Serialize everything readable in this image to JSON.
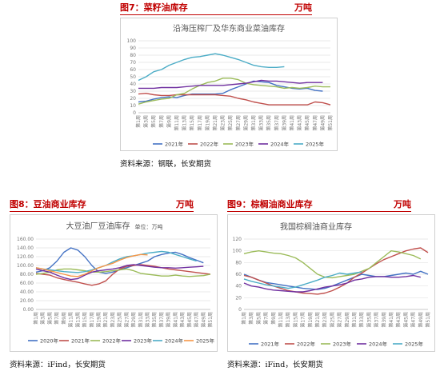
{
  "fig7": {
    "title": "图7：菜籽油库存",
    "unit": "万吨",
    "source": "资料来源：钢联，长安期货",
    "chart_data": {
      "type": "line",
      "title": "沿海压榨厂及华东商业菜油库存",
      "ylim": [
        0,
        100
      ],
      "yticks": [
        0,
        10,
        20,
        30,
        40,
        50,
        60,
        70,
        80,
        90,
        100
      ],
      "x": [
        "第1周",
        "第3周",
        "第5周",
        "第7周",
        "第9周",
        "第11周",
        "第13周",
        "第15周",
        "第17周",
        "第19周",
        "第21周",
        "第23周",
        "第25周",
        "第27周",
        "第29周",
        "第31周",
        "第33周",
        "第35周",
        "第37周",
        "第39周",
        "第41周",
        "第43周",
        "第45周",
        "第47周",
        "第49周",
        "第51周"
      ],
      "series": [
        {
          "name": "2021年",
          "color": "#4472c4",
          "values": [
            15,
            16,
            19,
            21,
            22,
            21,
            24,
            26,
            26,
            26,
            26,
            27,
            32,
            36,
            40,
            44,
            43,
            42,
            38,
            36,
            34,
            33,
            34,
            31,
            30,
            null
          ]
        },
        {
          "name": "2022年",
          "color": "#c0504d",
          "values": [
            26,
            27,
            25,
            24,
            24,
            25,
            25,
            25,
            25,
            25,
            25,
            24,
            23,
            20,
            18,
            15,
            13,
            11,
            11,
            11,
            11,
            11,
            11,
            15,
            14,
            11
          ]
        },
        {
          "name": "2023年",
          "color": "#9bbb59",
          "values": [
            12,
            15,
            17,
            19,
            20,
            25,
            27,
            33,
            38,
            42,
            44,
            48,
            48,
            46,
            41,
            39,
            38,
            37,
            36,
            34,
            35,
            34,
            35,
            37,
            36,
            36
          ]
        },
        {
          "name": "2024年",
          "color": "#7030a0",
          "values": [
            34,
            34,
            34,
            35,
            35,
            35,
            36,
            37,
            38,
            38,
            38,
            38,
            39,
            40,
            41,
            43,
            45,
            44,
            44,
            43,
            42,
            41,
            42,
            42,
            42,
            null
          ]
        },
        {
          "name": "2025年",
          "color": "#4bacc6",
          "values": [
            45,
            50,
            57,
            60,
            66,
            70,
            74,
            77,
            78,
            80,
            82,
            80,
            77,
            74,
            70,
            66,
            64,
            63,
            63,
            64,
            null,
            null,
            null,
            null,
            null,
            null
          ]
        }
      ]
    }
  },
  "fig8": {
    "title": "图8：豆油商业库存",
    "unit": "万吨",
    "source": "资料来源：iFind，长安期货",
    "chart_data": {
      "type": "line",
      "title": "大豆油厂豆油库存",
      "subtitle": "单位：万吨",
      "ylim": [
        0,
        160
      ],
      "yticks": [
        "0.00",
        "20.00",
        "40.00",
        "60.00",
        "80.00",
        "100.00",
        "120.00",
        "140.00",
        "160.00"
      ],
      "x": [
        "第1周",
        "第3周",
        "第5周",
        "第7周",
        "第9周",
        "第11周",
        "第13周",
        "第15周",
        "第17周",
        "第19周",
        "第21周",
        "第23周",
        "第25周",
        "第27周",
        "第29周",
        "第31周",
        "第33周",
        "第35周",
        "第37周",
        "第39周",
        "第41周",
        "第43周",
        "第45周",
        "第47周",
        "第49周",
        "第51周"
      ],
      "series": [
        {
          "name": "2020年",
          "color": "#4472c4",
          "values": [
            85,
            88,
            95,
            110,
            130,
            140,
            135,
            120,
            100,
            85,
            82,
            85,
            90,
            95,
            100,
            105,
            110,
            120,
            125,
            128,
            130,
            125,
            118,
            112,
            106,
            null
          ]
        },
        {
          "name": "2021年",
          "color": "#c0504d",
          "values": [
            82,
            80,
            78,
            72,
            68,
            65,
            62,
            58,
            55,
            58,
            65,
            80,
            92,
            98,
            100,
            102,
            100,
            98,
            95,
            92,
            90,
            88,
            86,
            84,
            82,
            80
          ]
        },
        {
          "name": "2022年",
          "color": "#9bbb59",
          "values": [
            80,
            82,
            85,
            90,
            92,
            92,
            90,
            88,
            85,
            85,
            86,
            88,
            90,
            92,
            88,
            82,
            80,
            78,
            76,
            76,
            78,
            76,
            75,
            76,
            77,
            80
          ]
        },
        {
          "name": "2023年",
          "color": "#7030a0",
          "values": [
            92,
            88,
            85,
            78,
            72,
            68,
            70,
            78,
            85,
            88,
            90,
            92,
            95,
            100,
            102,
            100,
            98,
            96,
            95,
            95,
            94,
            95,
            96,
            97,
            98,
            null
          ]
        },
        {
          "name": "2024年",
          "color": "#4bacc6",
          "values": [
            95,
            92,
            90,
            88,
            86,
            85,
            84,
            86,
            90,
            95,
            100,
            108,
            115,
            120,
            122,
            125,
            128,
            130,
            132,
            130,
            125,
            120,
            115,
            110,
            null,
            null
          ]
        },
        {
          "name": "2025年",
          "color": "#f79646",
          "values": [
            95,
            92,
            88,
            84,
            80,
            76,
            75,
            80,
            88,
            95,
            100,
            105,
            112,
            118,
            122,
            125,
            124,
            null,
            null,
            null,
            null,
            null,
            null,
            null,
            null,
            null
          ]
        }
      ]
    }
  },
  "fig9": {
    "title": "图9：棕榈油商业库存",
    "unit": "万吨",
    "source": "资料来源：iFind，长安期货",
    "chart_data": {
      "type": "line",
      "title": "我国棕榈油商业库存",
      "ylim": [
        0,
        120
      ],
      "yticks": [
        0,
        20,
        40,
        60,
        80,
        100,
        120
      ],
      "x": [
        "第1周",
        "第3周",
        "第5周",
        "第7周",
        "第9周",
        "第11周",
        "第13周",
        "第15周",
        "第17周",
        "第19周",
        "第21周",
        "第23周",
        "第25周",
        "第27周",
        "第29周",
        "第31周",
        "第33周",
        "第35周",
        "第37周",
        "第39周",
        "第41周",
        "第43周",
        "第45周",
        "第47周",
        "第49周",
        "第51周"
      ],
      "series": [
        {
          "name": "2021年",
          "color": "#4472c4",
          "values": [
            60,
            55,
            50,
            46,
            44,
            42,
            40,
            38,
            36,
            35,
            34,
            36,
            40,
            45,
            50,
            55,
            60,
            58,
            56,
            56,
            58,
            60,
            62,
            60,
            65,
            60
          ]
        },
        {
          "name": "2022年",
          "color": "#c0504d",
          "values": [
            58,
            55,
            50,
            45,
            40,
            36,
            32,
            30,
            28,
            27,
            26,
            28,
            32,
            38,
            45,
            55,
            62,
            70,
            78,
            85,
            90,
            95,
            100,
            103,
            105,
            97
          ]
        },
        {
          "name": "2023年",
          "color": "#9bbb59",
          "values": [
            95,
            98,
            100,
            98,
            96,
            95,
            92,
            88,
            80,
            70,
            60,
            55,
            54,
            56,
            58,
            60,
            65,
            70,
            80,
            90,
            100,
            98,
            95,
            92,
            86,
            null
          ]
        },
        {
          "name": "2024年",
          "color": "#7030a0",
          "values": [
            45,
            40,
            38,
            35,
            33,
            32,
            31,
            30,
            30,
            32,
            35,
            38,
            40,
            42,
            45,
            50,
            52,
            55,
            56,
            56,
            55,
            55,
            56,
            58,
            55,
            null
          ]
        },
        {
          "name": "2025年",
          "color": "#4bacc6",
          "values": [
            52,
            48,
            45,
            42,
            40,
            38,
            36,
            38,
            42,
            46,
            50,
            55,
            58,
            62,
            60,
            62,
            64,
            null,
            null,
            null,
            null,
            null,
            null,
            null,
            null,
            null
          ]
        }
      ]
    }
  }
}
